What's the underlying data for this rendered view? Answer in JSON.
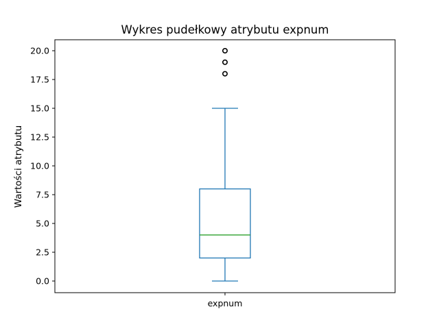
{
  "chart_data": {
    "type": "box",
    "title": "Wykres pudełkowy atrybutu expnum",
    "xlabel": "",
    "ylabel": "Wartości atrybutu",
    "ylim": [
      -1,
      20.0
    ],
    "yticks": [
      0.0,
      2.5,
      5.0,
      7.5,
      10.0,
      12.5,
      15.0,
      17.5,
      20.0
    ],
    "ytick_labels": [
      "0.0",
      "2.5",
      "5.0",
      "7.5",
      "10.0",
      "12.5",
      "15.0",
      "17.5",
      "20.0"
    ],
    "categories": [
      "expnum"
    ],
    "boxes": [
      {
        "name": "expnum",
        "whisker_low": 0,
        "q1": 2,
        "median": 4,
        "q3": 8,
        "whisker_high": 15,
        "outliers": [
          18,
          19,
          20
        ]
      }
    ],
    "grid": false,
    "colors": {
      "box": "#1f77b4",
      "median": "#2ca02c",
      "outlier": "#000000"
    }
  }
}
